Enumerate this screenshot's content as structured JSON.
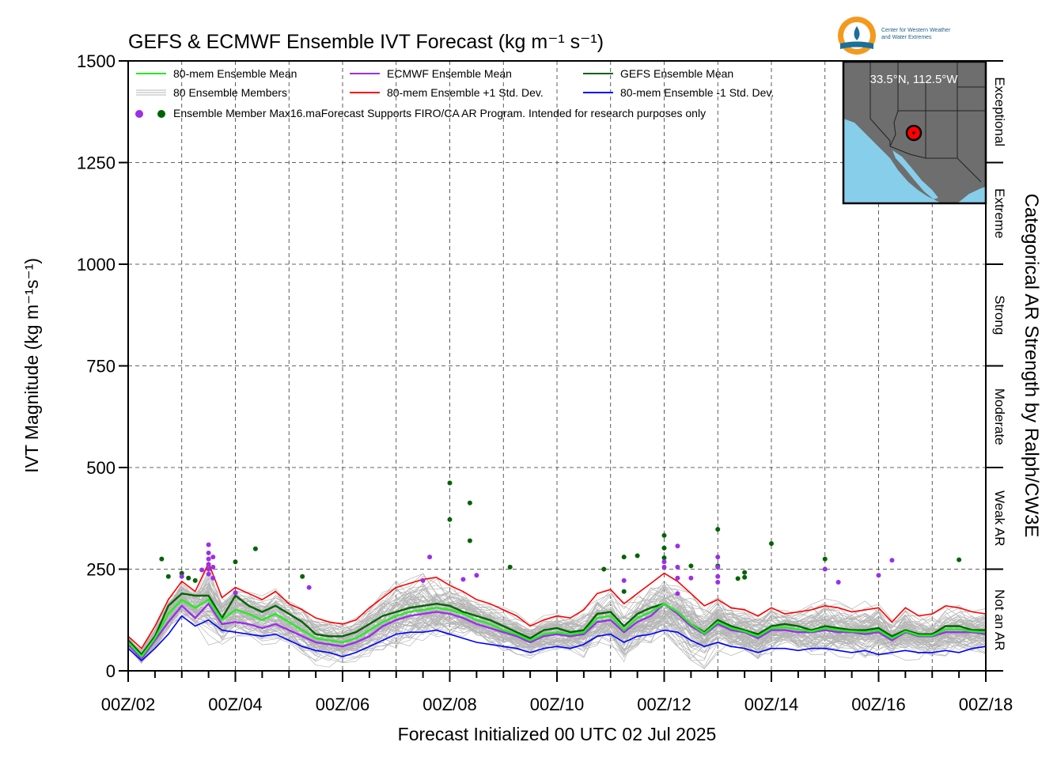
{
  "chart_data": {
    "type": "line",
    "title": "GEFS & ECMWF Ensemble IVT Forecast (kg m⁻¹ s⁻¹)",
    "ylabel": "IVT Magnitude (kg m⁻¹s⁻¹)",
    "xlabel": "Forecast Initialized 00 UTC 02 Jul 2025",
    "right_axis_label": "Categorical AR Strength by Ralph/CW3E",
    "ylim": [
      0,
      1500
    ],
    "xlim": [
      0,
      384
    ],
    "x_units": "forecast hours from 00Z/02",
    "y_ticks": [
      0,
      250,
      500,
      750,
      1000,
      1250,
      1500
    ],
    "x_ticks": [
      {
        "x": 0,
        "label": "00Z/02"
      },
      {
        "x": 48,
        "label": "00Z/04"
      },
      {
        "x": 96,
        "label": "00Z/06"
      },
      {
        "x": 144,
        "label": "00Z/08"
      },
      {
        "x": 192,
        "label": "00Z/10"
      },
      {
        "x": 240,
        "label": "00Z/12"
      },
      {
        "x": 288,
        "label": "00Z/14"
      },
      {
        "x": 336,
        "label": "00Z/16"
      },
      {
        "x": 384,
        "label": "00Z/18"
      }
    ],
    "grid": true,
    "legend_position": "top-left",
    "categories": [
      {
        "label": "Not an AR",
        "from": 0,
        "to": 250
      },
      {
        "label": "Weak AR",
        "from": 250,
        "to": 500
      },
      {
        "label": "Moderate",
        "from": 500,
        "to": 750
      },
      {
        "label": "Strong",
        "from": 750,
        "to": 1000
      },
      {
        "label": "Extreme",
        "from": 1000,
        "to": 1250
      },
      {
        "label": "Exceptional",
        "from": 1250,
        "to": 1500
      }
    ],
    "legend": {
      "mean80": "80-mem Ensemble Mean",
      "members": "80 Ensemble Members",
      "max": "Ensemble Member Max",
      "ecmwf": "ECMWF Ensemble Mean",
      "plus1": "80-mem Ensemble +1 Std. Dev.",
      "gefs": "GEFS Ensemble Mean",
      "minus1": "80-mem Ensemble -1 Std. Dev."
    },
    "note": "16.maForecast Supports FIRO/CA AR Program. Intended for research purposes only",
    "location_label": "33.5°N, 112.5°W",
    "series": [
      {
        "name": "80-mem Ensemble +1 Std. Dev.",
        "key": "plus1",
        "color": "#ff0000",
        "x": [
          0,
          6,
          12,
          18,
          24,
          30,
          36,
          42,
          48,
          54,
          60,
          66,
          72,
          78,
          84,
          90,
          96,
          102,
          108,
          114,
          120,
          126,
          132,
          138,
          144,
          150,
          156,
          162,
          168,
          174,
          180,
          186,
          192,
          198,
          204,
          210,
          216,
          222,
          228,
          234,
          240,
          246,
          252,
          258,
          264,
          270,
          276,
          282,
          288,
          294,
          300,
          306,
          312,
          318,
          324,
          330,
          336,
          342,
          348,
          354,
          360,
          366,
          372,
          378,
          384
        ],
        "y": [
          85,
          55,
          110,
          175,
          220,
          195,
          265,
          180,
          205,
          190,
          175,
          195,
          165,
          150,
          130,
          120,
          115,
          125,
          155,
          180,
          205,
          215,
          225,
          230,
          210,
          195,
          175,
          165,
          150,
          135,
          110,
          125,
          135,
          130,
          150,
          190,
          200,
          165,
          190,
          215,
          240,
          220,
          190,
          160,
          175,
          155,
          150,
          135,
          155,
          140,
          145,
          150,
          160,
          155,
          145,
          150,
          155,
          120,
          155,
          135,
          140,
          160,
          155,
          145,
          140
        ]
      },
      {
        "name": "80-mem Ensemble -1 Std. Dev.",
        "key": "minus1",
        "color": "#0000ff",
        "x": [
          0,
          6,
          12,
          18,
          24,
          30,
          36,
          42,
          48,
          54,
          60,
          66,
          72,
          78,
          84,
          90,
          96,
          102,
          108,
          114,
          120,
          126,
          132,
          138,
          144,
          150,
          156,
          162,
          168,
          174,
          180,
          186,
          192,
          198,
          204,
          210,
          216,
          222,
          228,
          234,
          240,
          246,
          252,
          258,
          264,
          270,
          276,
          282,
          288,
          294,
          300,
          306,
          312,
          318,
          324,
          330,
          336,
          342,
          348,
          354,
          360,
          366,
          372,
          378,
          384
        ],
        "y": [
          55,
          25,
          55,
          90,
          135,
          110,
          125,
          100,
          95,
          90,
          85,
          90,
          75,
          60,
          50,
          45,
          35,
          45,
          60,
          75,
          90,
          95,
          95,
          100,
          90,
          80,
          70,
          65,
          60,
          55,
          45,
          55,
          60,
          55,
          65,
          85,
          90,
          70,
          85,
          90,
          100,
          95,
          75,
          60,
          70,
          60,
          55,
          45,
          55,
          55,
          50,
          55,
          55,
          50,
          45,
          50,
          40,
          45,
          50,
          45,
          45,
          50,
          45,
          55,
          60
        ]
      },
      {
        "name": "GEFS Ensemble Mean",
        "key": "gefs",
        "color": "#006400",
        "x": [
          0,
          6,
          12,
          18,
          24,
          30,
          36,
          42,
          48,
          54,
          60,
          66,
          72,
          78,
          84,
          90,
          96,
          102,
          108,
          114,
          120,
          126,
          132,
          138,
          144,
          150,
          156,
          162,
          168,
          174,
          180,
          186,
          192,
          198,
          204,
          210,
          216,
          222,
          228,
          234,
          240,
          246,
          252,
          258,
          264,
          270,
          276,
          282,
          288,
          294,
          300,
          306,
          312,
          318,
          324,
          330,
          336,
          342,
          348,
          354,
          360,
          366,
          372,
          378,
          384
        ],
        "y": [
          75,
          40,
          85,
          160,
          190,
          185,
          185,
          130,
          185,
          160,
          145,
          160,
          140,
          120,
          90,
          85,
          85,
          95,
          115,
          135,
          145,
          155,
          160,
          165,
          160,
          145,
          135,
          125,
          110,
          95,
          80,
          100,
          105,
          95,
          100,
          140,
          145,
          110,
          140,
          155,
          165,
          145,
          115,
          95,
          125,
          110,
          100,
          90,
          110,
          115,
          110,
          100,
          110,
          105,
          100,
          100,
          105,
          85,
          100,
          90,
          90,
          110,
          110,
          100,
          100
        ]
      },
      {
        "name": "ECMWF Ensemble Mean",
        "key": "ecmwf",
        "color": "#9b30e8",
        "x": [
          0,
          6,
          12,
          18,
          24,
          30,
          36,
          42,
          48,
          54,
          60,
          66,
          72,
          78,
          84,
          90,
          96,
          102,
          108,
          114,
          120,
          126,
          132,
          138,
          144,
          150,
          156,
          162,
          168,
          174,
          180,
          186,
          192,
          198,
          204,
          210,
          216,
          222,
          228,
          234,
          240,
          246,
          252,
          258,
          264,
          270,
          276,
          282,
          288,
          294,
          300,
          306,
          312,
          318,
          324,
          330,
          336,
          342,
          348,
          354,
          360,
          366,
          372,
          378,
          384
        ],
        "y": [
          65,
          30,
          75,
          120,
          160,
          130,
          165,
          115,
          120,
          115,
          105,
          115,
          100,
          85,
          70,
          65,
          60,
          70,
          85,
          110,
          125,
          135,
          140,
          145,
          140,
          130,
          115,
          105,
          95,
          85,
          70,
          85,
          90,
          85,
          90,
          120,
          125,
          95,
          120,
          135,
          165,
          140,
          110,
          90,
          115,
          100,
          95,
          80,
          100,
          100,
          95,
          95,
          100,
          95,
          95,
          90,
          95,
          75,
          95,
          85,
          85,
          95,
          95,
          95,
          90
        ]
      },
      {
        "name": "80-mem Ensemble Mean",
        "key": "mean80",
        "color": "#22ee22",
        "x": [
          0,
          6,
          12,
          18,
          24,
          30,
          36,
          42,
          48,
          54,
          60,
          66,
          72,
          78,
          84,
          90,
          96,
          102,
          108,
          114,
          120,
          126,
          132,
          138,
          144,
          150,
          156,
          162,
          168,
          174,
          180,
          186,
          192,
          198,
          204,
          210,
          216,
          222,
          228,
          234,
          240,
          246,
          252,
          258,
          264,
          270,
          276,
          282,
          288,
          294,
          300,
          306,
          312,
          318,
          324,
          330,
          336,
          342,
          348,
          354,
          360,
          366,
          372,
          378,
          384
        ],
        "y": [
          70,
          35,
          80,
          140,
          175,
          155,
          175,
          125,
          150,
          140,
          125,
          140,
          120,
          100,
          80,
          75,
          70,
          80,
          100,
          120,
          135,
          145,
          150,
          155,
          150,
          140,
          125,
          115,
          100,
          90,
          75,
          90,
          95,
          90,
          95,
          130,
          135,
          100,
          130,
          145,
          165,
          145,
          115,
          92,
          120,
          105,
          97,
          85,
          105,
          107,
          102,
          97,
          105,
          100,
          97,
          95,
          100,
          80,
          97,
          87,
          87,
          102,
          102,
          97,
          95
        ]
      }
    ],
    "max_points": [
      {
        "model": "GEFS",
        "x": 15,
        "y": 275
      },
      {
        "model": "GEFS",
        "x": 18,
        "y": 232
      },
      {
        "model": "GEFS",
        "x": 24,
        "y": 240
      },
      {
        "model": "GEFS",
        "x": 27,
        "y": 228
      },
      {
        "model": "GEFS",
        "x": 30,
        "y": 222
      },
      {
        "model": "GEFS",
        "x": 48,
        "y": 268
      },
      {
        "model": "GEFS",
        "x": 57,
        "y": 300
      },
      {
        "model": "GEFS",
        "x": 78,
        "y": 232
      },
      {
        "model": "GEFS",
        "x": 144,
        "y": 462
      },
      {
        "model": "GEFS",
        "x": 144,
        "y": 372
      },
      {
        "model": "GEFS",
        "x": 153,
        "y": 413
      },
      {
        "model": "GEFS",
        "x": 153,
        "y": 320
      },
      {
        "model": "GEFS",
        "x": 171,
        "y": 255
      },
      {
        "model": "GEFS",
        "x": 213,
        "y": 250
      },
      {
        "model": "GEFS",
        "x": 222,
        "y": 280
      },
      {
        "model": "GEFS",
        "x": 222,
        "y": 195
      },
      {
        "model": "GEFS",
        "x": 228,
        "y": 283
      },
      {
        "model": "GEFS",
        "x": 240,
        "y": 333
      },
      {
        "model": "GEFS",
        "x": 240,
        "y": 302
      },
      {
        "model": "GEFS",
        "x": 240,
        "y": 278
      },
      {
        "model": "GEFS",
        "x": 252,
        "y": 258
      },
      {
        "model": "GEFS",
        "x": 264,
        "y": 348
      },
      {
        "model": "GEFS",
        "x": 264,
        "y": 258
      },
      {
        "model": "GEFS",
        "x": 273,
        "y": 227
      },
      {
        "model": "GEFS",
        "x": 276,
        "y": 242
      },
      {
        "model": "GEFS",
        "x": 276,
        "y": 230
      },
      {
        "model": "GEFS",
        "x": 288,
        "y": 313
      },
      {
        "model": "GEFS",
        "x": 312,
        "y": 275
      },
      {
        "model": "GEFS",
        "x": 372,
        "y": 273
      },
      {
        "model": "ECMWF",
        "x": 24,
        "y": 232
      },
      {
        "model": "ECMWF",
        "x": 33,
        "y": 248
      },
      {
        "model": "ECMWF",
        "x": 36,
        "y": 310
      },
      {
        "model": "ECMWF",
        "x": 36,
        "y": 290
      },
      {
        "model": "ECMWF",
        "x": 36,
        "y": 275
      },
      {
        "model": "ECMWF",
        "x": 36,
        "y": 262
      },
      {
        "model": "ECMWF",
        "x": 36,
        "y": 250
      },
      {
        "model": "ECMWF",
        "x": 36,
        "y": 238
      },
      {
        "model": "ECMWF",
        "x": 38,
        "y": 280
      },
      {
        "model": "ECMWF",
        "x": 38,
        "y": 255
      },
      {
        "model": "ECMWF",
        "x": 38,
        "y": 228
      },
      {
        "model": "ECMWF",
        "x": 48,
        "y": 192
      },
      {
        "model": "ECMWF",
        "x": 81,
        "y": 205
      },
      {
        "model": "ECMWF",
        "x": 132,
        "y": 222
      },
      {
        "model": "ECMWF",
        "x": 135,
        "y": 280
      },
      {
        "model": "ECMWF",
        "x": 150,
        "y": 225
      },
      {
        "model": "ECMWF",
        "x": 156,
        "y": 235
      },
      {
        "model": "ECMWF",
        "x": 222,
        "y": 222
      },
      {
        "model": "ECMWF",
        "x": 240,
        "y": 268
      },
      {
        "model": "ECMWF",
        "x": 240,
        "y": 255
      },
      {
        "model": "ECMWF",
        "x": 246,
        "y": 307
      },
      {
        "model": "ECMWF",
        "x": 246,
        "y": 255
      },
      {
        "model": "ECMWF",
        "x": 246,
        "y": 228
      },
      {
        "model": "ECMWF",
        "x": 246,
        "y": 190
      },
      {
        "model": "ECMWF",
        "x": 252,
        "y": 228
      },
      {
        "model": "ECMWF",
        "x": 264,
        "y": 280
      },
      {
        "model": "ECMWF",
        "x": 264,
        "y": 255
      },
      {
        "model": "ECMWF",
        "x": 264,
        "y": 232
      },
      {
        "model": "ECMWF",
        "x": 264,
        "y": 218
      },
      {
        "model": "ECMWF",
        "x": 312,
        "y": 250
      },
      {
        "model": "ECMWF",
        "x": 318,
        "y": 218
      },
      {
        "model": "ECMWF",
        "x": 336,
        "y": 235
      },
      {
        "model": "ECMWF",
        "x": 342,
        "y": 272
      }
    ]
  },
  "logo": {
    "line1": "Center for Western Weather",
    "line2": "and Water Extremes"
  },
  "colors": {
    "members": "#b5b5b5",
    "gefs_max": "#006400",
    "ecmwf_max": "#9b30e8",
    "map_land": "#6e6e6e",
    "map_water": "#87ceeb",
    "marker": "#ff0000"
  }
}
